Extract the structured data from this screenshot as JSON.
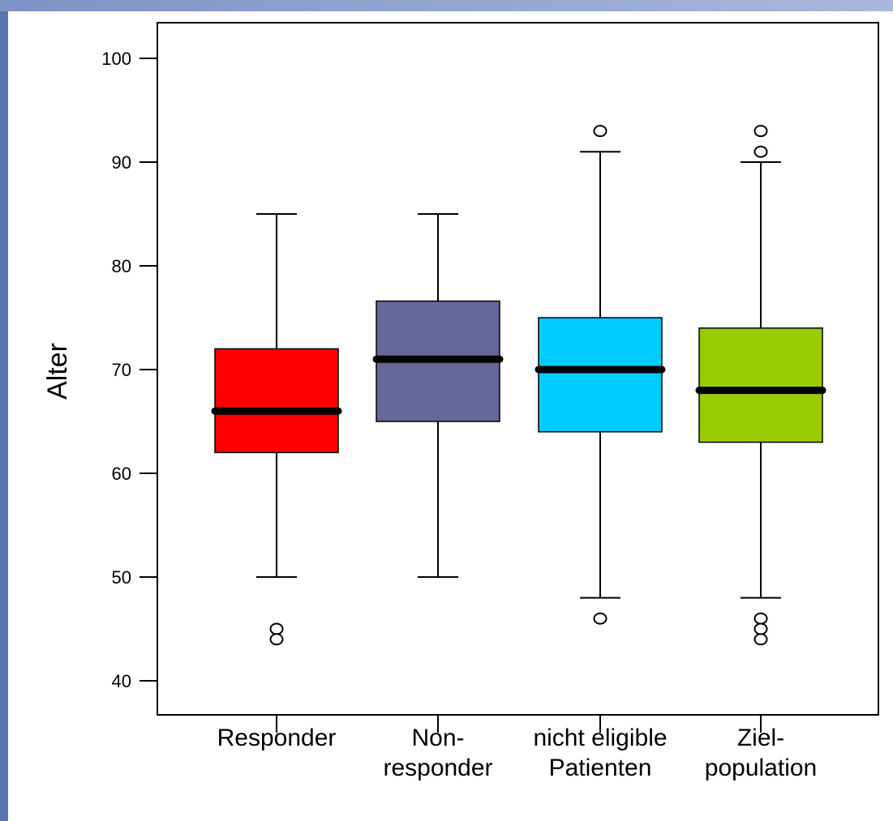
{
  "chart_data": {
    "type": "boxplot",
    "ylabel": "Alter",
    "ylim": [
      36,
      104
    ],
    "yticks": [
      40,
      50,
      60,
      70,
      80,
      90,
      100
    ],
    "categories": [
      {
        "lines": [
          "Responder"
        ]
      },
      {
        "lines": [
          "Non-",
          "responder"
        ]
      },
      {
        "lines": [
          "nicht eligible",
          "Patienten"
        ]
      },
      {
        "lines": [
          "Ziel-",
          "population"
        ]
      }
    ],
    "boxes": [
      {
        "name": "Responder",
        "color": "#ff0000",
        "whisker_low": 50,
        "q1": 62,
        "median": 66,
        "q3": 72,
        "whisker_high": 85,
        "outliers": [
          45,
          44
        ]
      },
      {
        "name": "Non-responder",
        "color": "#666699",
        "whisker_low": 50,
        "q1": 65,
        "median": 71,
        "q3": 76.6,
        "whisker_high": 85,
        "outliers": []
      },
      {
        "name": "nicht eligible Patienten",
        "color": "#00ccff",
        "whisker_low": 48,
        "q1": 64,
        "median": 70,
        "q3": 75,
        "whisker_high": 91,
        "outliers": [
          46,
          93
        ]
      },
      {
        "name": "Zielpopulation",
        "color": "#99cc00",
        "whisker_low": 48,
        "q1": 63,
        "median": 68,
        "q3": 74,
        "whisker_high": 90,
        "outliers": [
          46,
          45,
          44,
          91,
          93
        ]
      }
    ]
  }
}
